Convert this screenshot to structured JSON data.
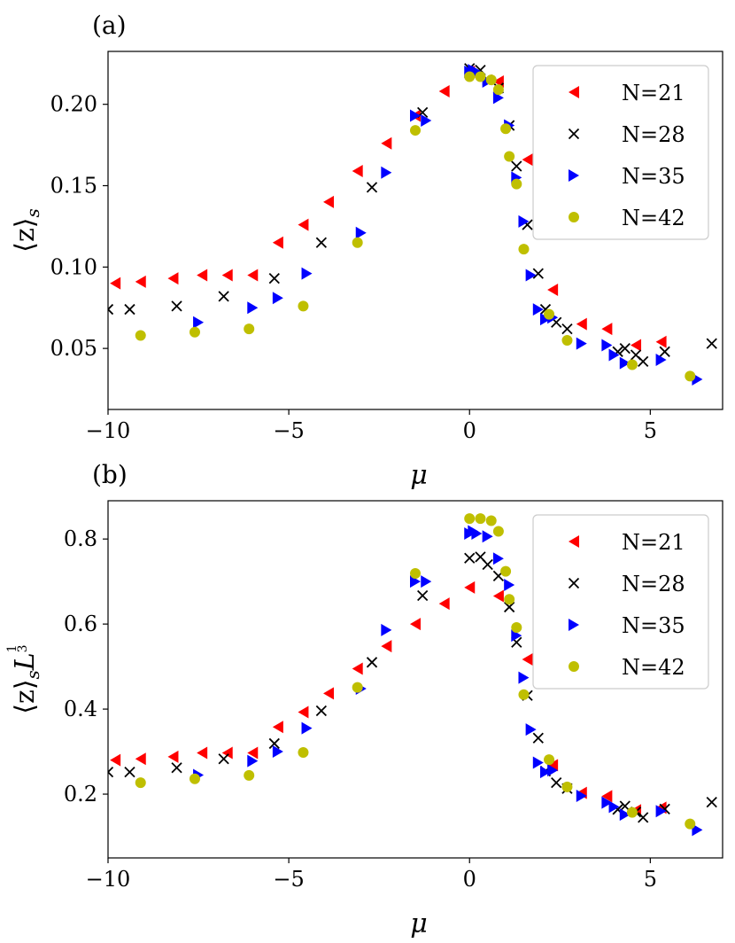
{
  "chart_data": [
    {
      "type": "scatter",
      "panel_label": "(a)",
      "xlabel": "μ",
      "ylabel": "⟨z⟩",
      "ylabel_sub": "s",
      "xlim": [
        -10,
        7
      ],
      "ylim": [
        0.0125,
        0.2325
      ],
      "xticks": [
        -10,
        -5,
        0,
        5
      ],
      "xtick_labels": [
        "−10",
        "−5",
        "0",
        "5"
      ],
      "yticks": [
        0.05,
        0.1,
        0.15,
        0.2
      ],
      "ytick_labels": [
        "0.05",
        "0.10",
        "0.15",
        "0.20"
      ],
      "legend_position": "top-right",
      "series": [
        {
          "name": "N=21",
          "marker": "triangle-left",
          "color": "#ff0000",
          "x": [
            -9.8,
            -9.1,
            -8.2,
            -7.4,
            -6.7,
            -6.0,
            -5.3,
            -4.6,
            -3.9,
            -3.1,
            -2.3,
            -1.5,
            -0.7,
            0.0,
            0.8,
            1.6,
            2.3,
            3.1,
            3.8,
            4.6,
            5.3
          ],
          "y": [
            0.09,
            0.091,
            0.093,
            0.095,
            0.095,
            0.095,
            0.115,
            0.126,
            0.14,
            0.159,
            0.176,
            0.193,
            0.208,
            0.22,
            0.214,
            0.166,
            0.086,
            0.065,
            0.062,
            0.052,
            0.054
          ]
        },
        {
          "name": "N=28",
          "marker": "x",
          "color": "#000000",
          "x": [
            -10.0,
            -9.4,
            -8.1,
            -6.8,
            -5.4,
            -4.1,
            -2.7,
            -1.3,
            0.0,
            0.3,
            0.5,
            0.8,
            1.1,
            1.3,
            1.6,
            1.9,
            2.1,
            2.4,
            2.7,
            4.1,
            4.3,
            4.6,
            4.8,
            5.4,
            6.7
          ],
          "y": [
            0.074,
            0.074,
            0.076,
            0.082,
            0.093,
            0.115,
            0.149,
            0.195,
            0.222,
            0.221,
            0.215,
            0.21,
            0.187,
            0.162,
            0.126,
            0.096,
            0.074,
            0.066,
            0.062,
            0.048,
            0.05,
            0.046,
            0.042,
            0.048,
            0.053
          ]
        },
        {
          "name": "N=35",
          "marker": "triangle-right",
          "color": "#0000ff",
          "x": [
            -7.5,
            -6.0,
            -5.3,
            -4.5,
            -3.0,
            -2.3,
            -1.5,
            -1.2,
            0.0,
            0.1,
            0.2,
            0.5,
            0.8,
            1.1,
            1.3,
            1.5,
            1.7,
            1.9,
            2.1,
            2.3,
            3.1,
            3.8,
            4.0,
            4.3,
            5.3,
            6.3
          ],
          "y": [
            0.066,
            0.075,
            0.081,
            0.096,
            0.121,
            0.158,
            0.193,
            0.19,
            0.22,
            0.221,
            0.22,
            0.214,
            0.204,
            0.187,
            0.155,
            0.128,
            0.095,
            0.074,
            0.068,
            0.069,
            0.053,
            0.052,
            0.046,
            0.041,
            0.043,
            0.031
          ]
        },
        {
          "name": "N=42",
          "marker": "circle",
          "color": "#bfbf00",
          "x": [
            -9.1,
            -7.6,
            -6.1,
            -4.6,
            -3.1,
            -1.5,
            0.0,
            0.3,
            0.6,
            0.8,
            1.0,
            1.1,
            1.3,
            1.5,
            2.2,
            2.7,
            4.5,
            6.1
          ],
          "y": [
            0.058,
            0.06,
            0.062,
            0.076,
            0.115,
            0.184,
            0.217,
            0.217,
            0.215,
            0.209,
            0.185,
            0.168,
            0.151,
            0.111,
            0.071,
            0.055,
            0.04,
            0.033
          ]
        }
      ]
    },
    {
      "type": "scatter",
      "panel_label": "(b)",
      "xlabel": "μ",
      "ylabel": "⟨z⟩",
      "ylabel_sub": "s",
      "ylabel_suffix": "L",
      "ylabel_frac_num": "1",
      "ylabel_frac_den": "3",
      "xlim": [
        -10,
        7
      ],
      "ylim": [
        0.05,
        0.89
      ],
      "xticks": [
        -10,
        -5,
        0,
        5
      ],
      "xtick_labels": [
        "−10",
        "−5",
        "0",
        "5"
      ],
      "yticks": [
        0.2,
        0.4,
        0.6,
        0.8
      ],
      "ytick_labels": [
        "0.2",
        "0.4",
        "0.6",
        "0.8"
      ],
      "legend_position": "top-right",
      "series": [
        {
          "name": "N=21",
          "marker": "triangle-left",
          "color": "#ff0000",
          "x": [
            -9.8,
            -9.1,
            -8.2,
            -7.4,
            -6.7,
            -6.0,
            -5.3,
            -4.6,
            -3.9,
            -3.1,
            -2.3,
            -1.5,
            -0.7,
            0.0,
            0.8,
            1.6,
            2.3,
            3.1,
            3.8,
            4.6,
            5.3
          ],
          "y": [
            0.28,
            0.283,
            0.288,
            0.297,
            0.297,
            0.297,
            0.358,
            0.393,
            0.437,
            0.495,
            0.548,
            0.6,
            0.648,
            0.686,
            0.666,
            0.517,
            0.268,
            0.203,
            0.195,
            0.162,
            0.168
          ]
        },
        {
          "name": "N=28",
          "marker": "x",
          "color": "#000000",
          "x": [
            -10.0,
            -9.4,
            -8.1,
            -6.8,
            -5.4,
            -4.1,
            -2.7,
            -1.3,
            0.0,
            0.3,
            0.5,
            0.8,
            1.1,
            1.3,
            1.6,
            1.9,
            2.1,
            2.4,
            2.7,
            4.1,
            4.3,
            4.6,
            4.8,
            5.4,
            6.7
          ],
          "y": [
            0.252,
            0.252,
            0.262,
            0.283,
            0.319,
            0.396,
            0.51,
            0.667,
            0.755,
            0.758,
            0.74,
            0.713,
            0.64,
            0.557,
            0.432,
            0.332,
            0.254,
            0.227,
            0.213,
            0.164,
            0.172,
            0.158,
            0.145,
            0.165,
            0.181
          ]
        },
        {
          "name": "N=35",
          "marker": "triangle-right",
          "color": "#0000ff",
          "x": [
            -7.5,
            -6.0,
            -5.3,
            -4.5,
            -3.0,
            -2.3,
            -1.5,
            -1.2,
            0.0,
            0.1,
            0.2,
            0.5,
            0.8,
            1.1,
            1.3,
            1.5,
            1.7,
            1.9,
            2.1,
            2.3,
            3.1,
            3.8,
            4.0,
            4.3,
            5.3,
            6.3
          ],
          "y": [
            0.245,
            0.278,
            0.3,
            0.355,
            0.448,
            0.586,
            0.7,
            0.7,
            0.813,
            0.818,
            0.813,
            0.806,
            0.754,
            0.692,
            0.573,
            0.474,
            0.352,
            0.274,
            0.252,
            0.256,
            0.196,
            0.18,
            0.17,
            0.152,
            0.16,
            0.116
          ]
        },
        {
          "name": "N=42",
          "marker": "circle",
          "color": "#bfbf00",
          "x": [
            -9.1,
            -7.6,
            -6.1,
            -4.6,
            -3.1,
            -1.5,
            0.0,
            0.3,
            0.6,
            0.8,
            1.0,
            1.1,
            1.3,
            1.5,
            2.2,
            2.7,
            4.5,
            6.1
          ],
          "y": [
            0.227,
            0.236,
            0.244,
            0.298,
            0.451,
            0.719,
            0.848,
            0.848,
            0.843,
            0.818,
            0.724,
            0.658,
            0.592,
            0.434,
            0.281,
            0.217,
            0.157,
            0.13
          ]
        }
      ]
    }
  ]
}
